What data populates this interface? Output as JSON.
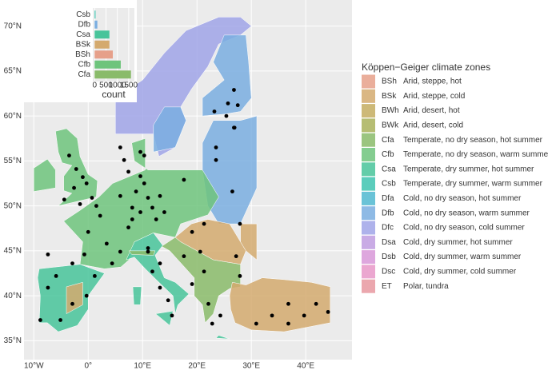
{
  "map": {
    "yticks": [
      {
        "value": 35,
        "label": "35°N"
      },
      {
        "value": 40,
        "label": "40°N"
      },
      {
        "value": 45,
        "label": "45°N"
      },
      {
        "value": 50,
        "label": "50°N"
      },
      {
        "value": 55,
        "label": "55°N"
      },
      {
        "value": 60,
        "label": "60°N"
      },
      {
        "value": 65,
        "label": "65°N"
      },
      {
        "value": 70,
        "label": "70°N"
      }
    ],
    "xticks": [
      {
        "value": -10,
        "label": "10°W"
      },
      {
        "value": 0,
        "label": "0°"
      },
      {
        "value": 10,
        "label": "10°E"
      },
      {
        "value": 20,
        "label": "20°E"
      },
      {
        "value": 30,
        "label": "30°E"
      },
      {
        "value": 40,
        "label": "40°E"
      }
    ],
    "xlim": [
      -11.8,
      48.5
    ],
    "ylim": [
      32.9,
      72.9
    ],
    "points": {
      "lon": [
        26.8,
        25.7,
        27.5,
        25.4,
        26.9,
        23.2,
        -3.5,
        -2.2,
        -1.0,
        -2.6,
        -0.3,
        0.7,
        -4.4,
        -1.5,
        1.5,
        0,
        2.2,
        3.4,
        5.9,
        4.4,
        1.2,
        -0.7,
        7.4,
        5.9,
        6.6,
        7.4,
        9.6,
        8.8,
        11.0,
        8.1,
        9.6,
        11.8,
        13.2,
        10.3,
        12.5,
        5.9,
        14.0,
        8.1,
        11.0,
        11.8,
        13.2,
        14.7,
        15.4,
        11.0,
        13.2,
        17.6,
        -5.9,
        -7.4,
        -8.8,
        -5.1,
        -2.9,
        -0.3,
        -7.4,
        -2.9,
        20.6,
        21.3,
        19.1,
        22.1,
        24.3,
        22.8,
        27.2,
        27.9,
        30.9,
        33.8,
        36.8,
        39.7,
        41.9,
        44.1,
        36.8,
        17.6,
        23.5,
        23.5,
        21.3,
        19.1,
        26.5,
        26.8,
        27.9,
        9.6,
        10.3
      ],
      "lat": [
        62.9,
        61.4,
        61.2,
        60.0,
        58.7,
        60.5,
        55.6,
        54.1,
        53.2,
        52.0,
        52.5,
        50.9,
        50.7,
        50.2,
        50.0,
        47.1,
        48.9,
        45.8,
        44.9,
        43.6,
        42.2,
        44.6,
        47.6,
        56.5,
        55.1,
        53.8,
        53.3,
        51.6,
        50.9,
        49.8,
        49.3,
        49.8,
        51.1,
        52.5,
        48.5,
        51.1,
        49.3,
        48.5,
        44.9,
        42.7,
        40.9,
        39.5,
        37.8,
        45.3,
        43.6,
        44.4,
        42.2,
        40.9,
        37.3,
        37.3,
        39.1,
        40.0,
        44.6,
        43.6,
        44.9,
        42.7,
        41.3,
        39.1,
        37.8,
        36.9,
        44.4,
        42.2,
        36.9,
        37.8,
        39.1,
        37.8,
        39.1,
        38.2,
        36.9,
        52.9,
        56.5,
        55.1,
        48.0,
        47.1,
        51.6,
        58.7,
        48.0,
        56.0,
        55.6
      ]
    }
  },
  "chart_data": {
    "type": "bar",
    "orientation": "horizontal",
    "categories": [
      "Csb",
      "Dfb",
      "Csa",
      "BSk",
      "BSh",
      "Cfb",
      "Cfa"
    ],
    "values": [
      40,
      120,
      650,
      650,
      800,
      1150,
      1600
    ],
    "colors": [
      "#3ec4b0",
      "#7aaee0",
      "#48c49a",
      "#d4aa6e",
      "#e6a08a",
      "#6ec47c",
      "#8abb6a"
    ],
    "xlabel": "count",
    "xlim": [
      -80,
      1750
    ],
    "xticks": [
      0,
      500,
      1000,
      1500
    ]
  },
  "legend": {
    "title": "Köppen−Geiger climate zones",
    "items": [
      {
        "code": "BSh",
        "label": "Arid, steppe, hot",
        "color": "#e6a08a"
      },
      {
        "code": "BSk",
        "label": "Arid, steppe, cold",
        "color": "#d4aa6e"
      },
      {
        "code": "BWh",
        "label": "Arid, desert, hot",
        "color": "#c4ad60"
      },
      {
        "code": "BWk",
        "label": "Arid, desert, cold",
        "color": "#a9b25a"
      },
      {
        "code": "Cfa",
        "label": "Temperate, no dry season, hot summer",
        "color": "#8abb6a"
      },
      {
        "code": "Cfb",
        "label": "Temperate, no dry season, warm summer",
        "color": "#6ec47c"
      },
      {
        "code": "Csa",
        "label": "Temperate, dry summer, hot summer",
        "color": "#48c49a"
      },
      {
        "code": "Csb",
        "label": "Temperate, dry summer, warm summer",
        "color": "#3ec4b0"
      },
      {
        "code": "Dfa",
        "label": "Cold, no dry season, hot summer",
        "color": "#50b8d0"
      },
      {
        "code": "Dfb",
        "label": "Cold, no dry season, warm summer",
        "color": "#7aaee0"
      },
      {
        "code": "Dfc",
        "label": "Cold, no dry season, cold summer",
        "color": "#a0a4e8"
      },
      {
        "code": "Dsa",
        "label": "Cold, dry summer, hot summer",
        "color": "#c09ce0"
      },
      {
        "code": "Dsb",
        "label": "Cold, dry summer, warm summer",
        "color": "#d898d8"
      },
      {
        "code": "Dsc",
        "label": "Cold, dry summer, cold summer",
        "color": "#e898c8"
      },
      {
        "code": "ET",
        "label": "Polar, tundra",
        "color": "#e898a0"
      }
    ]
  }
}
